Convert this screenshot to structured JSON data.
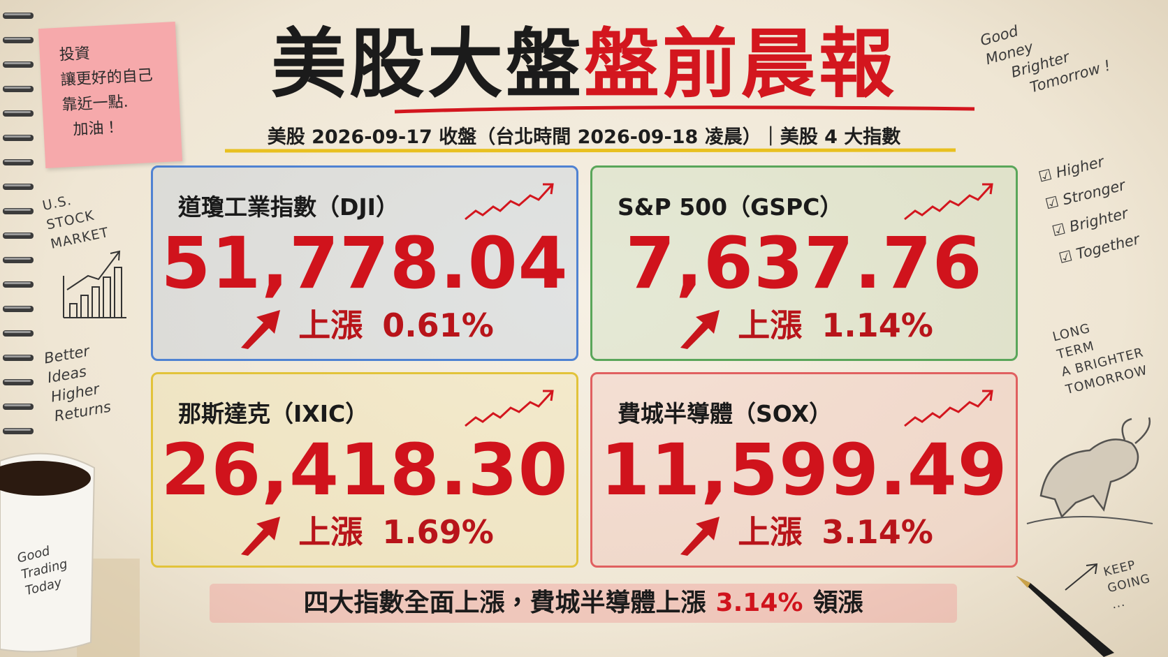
{
  "header": {
    "title_black": "美股大盤",
    "title_red": "盤前晨報",
    "subtitle": "美股 2026-09-17 收盤（台北時間 2026-09-18 凌晨）｜美股 4 大指數"
  },
  "cards": [
    {
      "name": "道瓊工業指數（DJI）",
      "value": "51,778.04",
      "direction": "上漲",
      "change": "0.61%"
    },
    {
      "name": "S&P 500（GSPC）",
      "value": "7,637.76",
      "direction": "上漲",
      "change": "1.14%"
    },
    {
      "name": "那斯達克（IXIC）",
      "value": "26,418.30",
      "direction": "上漲",
      "change": "1.69%"
    },
    {
      "name": "費城半導體（SOX）",
      "value": "11,599.49",
      "direction": "上漲",
      "change": "3.14%"
    }
  ],
  "footer": {
    "text": "四大指數全面上漲，費城半導體上漲",
    "highlight": "3.14%",
    "suffix": "領漲"
  },
  "sticky_note": {
    "lines": [
      "投資",
      "讓更好的自己",
      "靠近一點.",
      "加油！"
    ]
  },
  "doodles": {
    "market": [
      "U.S.",
      "STOCK",
      "MARKET"
    ],
    "ideas": [
      "Better",
      "Ideas",
      "Higher",
      "Returns"
    ],
    "cup": [
      "Good",
      "Trading",
      "Today"
    ],
    "money": [
      "Good",
      "Money",
      "Brighter",
      "Tomorrow !"
    ],
    "checklist": [
      "Higher",
      "Stronger",
      "Brighter",
      "Together"
    ],
    "long_term": [
      "LONG",
      "TERM",
      "A BRIGHTER",
      "TOMORROW"
    ],
    "keep_going": [
      "KEEP",
      "GOING",
      "..."
    ]
  }
}
